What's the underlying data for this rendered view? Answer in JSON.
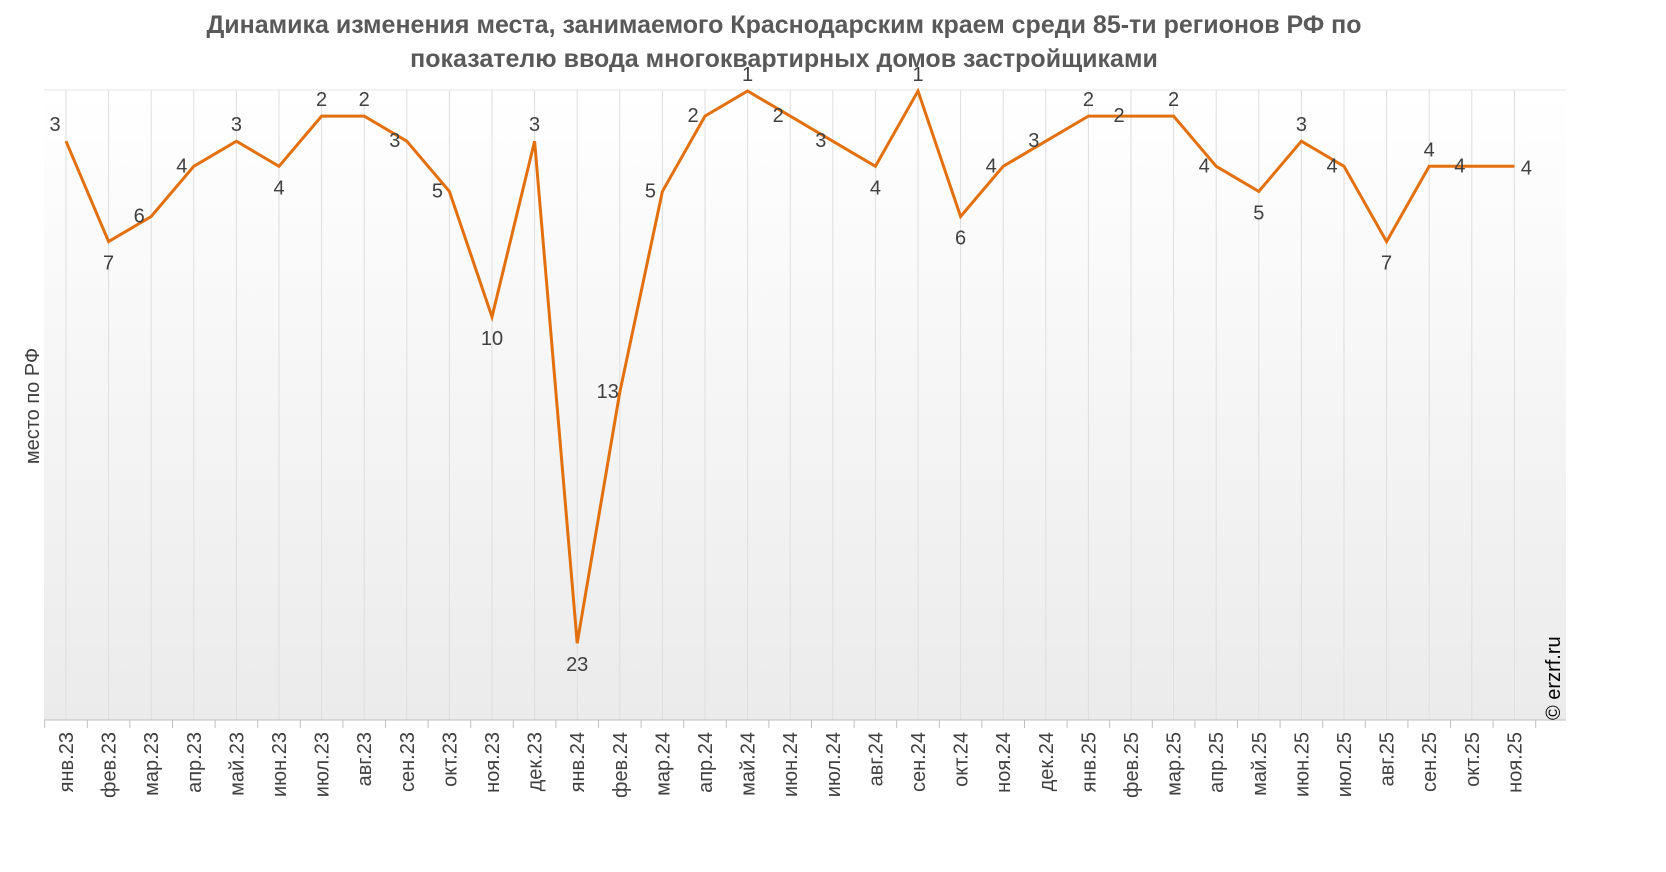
{
  "chart_data": {
    "type": "line",
    "title_lines": [
      "Динамика изменения места, занимаемого Краснодарским краем среди 85-ти регионов РФ по",
      "показателю ввода многоквартирных домов застройщиками"
    ],
    "ylabel": "место по РФ",
    "y_axis_reversed": true,
    "ylim": [
      0,
      25
    ],
    "categories": [
      "янв.23",
      "фев.23",
      "мар.23",
      "апр.23",
      "май.23",
      "июн.23",
      "июл.23",
      "авг.23",
      "сен.23",
      "окт.23",
      "ноя.23",
      "дек.23",
      "янв.24",
      "фев.24",
      "мар.24",
      "апр.24",
      "май.24",
      "июн.24",
      "июл.24",
      "авг.24",
      "сен.24",
      "окт.24",
      "ноя.24",
      "дек.24",
      "янв.25",
      "фев.25",
      "мар.25",
      "апр.25",
      "май.25",
      "июн.25",
      "июл.25",
      "авг.25",
      "сен.25",
      "окт.25",
      "ноя.25"
    ],
    "series": [
      {
        "values": [
          3,
          7,
          6,
          4,
          3,
          4,
          2,
          2,
          3,
          5,
          10,
          3,
          23,
          13,
          5,
          2,
          1,
          2,
          3,
          4,
          1,
          6,
          4,
          3,
          2,
          2,
          2,
          4,
          5,
          3,
          4,
          7,
          4,
          4,
          4
        ],
        "color": "#E3700E"
      }
    ],
    "grid": "vertical",
    "legend": "none",
    "credit": "© erzrf.ru"
  }
}
